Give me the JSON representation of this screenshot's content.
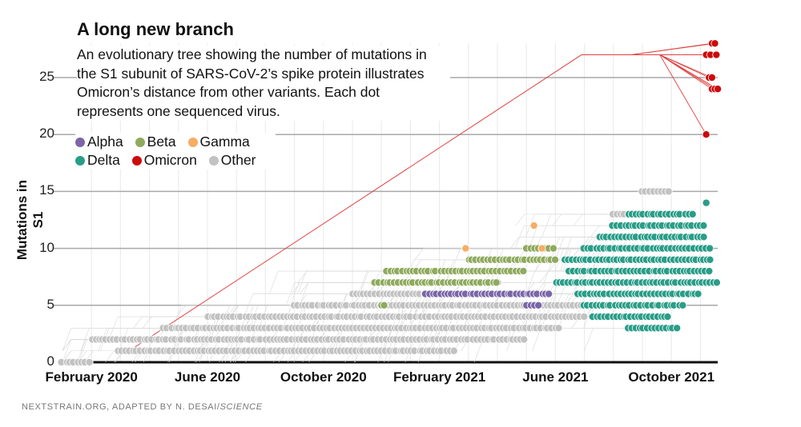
{
  "title": "A long new branch",
  "subtitle": "An evolutionary tree showing the number of mutations in the S1 subunit of SARS-CoV-2’s spike protein illustrates Omicron’s distance from other variants. Each dot represents one sequenced virus.",
  "footer": {
    "source": "NEXTSTRAIN.ORG, ADAPTED BY N. DESAI/",
    "publication": "SCIENCE"
  },
  "chart_data": {
    "type": "scatter",
    "title": "A long new branch",
    "xlabel": "",
    "ylabel": "Mutations in S1",
    "x_unit": "months since January 2020",
    "xlim": [
      0,
      22.6
    ],
    "ylim": [
      0,
      28
    ],
    "yticks": [
      0,
      5,
      10,
      15,
      20,
      25
    ],
    "xticks": [
      {
        "label": "February 2020",
        "value": 1
      },
      {
        "label": "June 2020",
        "value": 5
      },
      {
        "label": "October 2020",
        "value": 9
      },
      {
        "label": "February 2021",
        "value": 13
      },
      {
        "label": "June 2021",
        "value": 17
      },
      {
        "label": "October 2021",
        "value": 21
      }
    ],
    "legend": [
      {
        "name": "Alpha",
        "color": "#7a66a8"
      },
      {
        "name": "Beta",
        "color": "#8faa5e"
      },
      {
        "name": "Gamma",
        "color": "#f7ad63"
      },
      {
        "name": "Delta",
        "color": "#2a9d88"
      },
      {
        "name": "Omicron",
        "color": "#cc0a0a"
      },
      {
        "name": "Other",
        "color": "#c2c2c2"
      }
    ],
    "dot_runs": [
      {
        "variant": "Other",
        "y": 0,
        "from": 0,
        "to": 1
      },
      {
        "variant": "Other",
        "y": 1,
        "from": 1.9,
        "to": 13.5
      },
      {
        "variant": "Other",
        "y": 2,
        "from": 1,
        "to": 16
      },
      {
        "variant": "Other",
        "y": 3,
        "from": 3.5,
        "to": 17.2
      },
      {
        "variant": "Other",
        "y": 4,
        "from": 5,
        "to": 18
      },
      {
        "variant": "Other",
        "y": 5,
        "from": 8,
        "to": 18.5
      },
      {
        "variant": "Other",
        "y": 6,
        "from": 10,
        "to": 16
      },
      {
        "variant": "Other",
        "y": 7,
        "from": 12,
        "to": 15
      },
      {
        "variant": "Other",
        "y": 10,
        "from": 19.5,
        "to": 21.5
      },
      {
        "variant": "Other",
        "y": 13,
        "from": 19,
        "to": 20.5
      },
      {
        "variant": "Other",
        "y": 15,
        "from": 20,
        "to": 21
      },
      {
        "variant": "Alpha",
        "y": 6,
        "from": 12.5,
        "to": 16.8
      },
      {
        "variant": "Alpha",
        "y": 5,
        "from": 16,
        "to": 16.5
      },
      {
        "variant": "Beta",
        "y": 7,
        "from": 10.8,
        "to": 15
      },
      {
        "variant": "Beta",
        "y": 8,
        "from": 11.2,
        "to": 16
      },
      {
        "variant": "Beta",
        "y": 9,
        "from": 14,
        "to": 17
      },
      {
        "variant": "Beta",
        "y": 10,
        "from": 16,
        "to": 17
      },
      {
        "variant": "Beta",
        "y": 5,
        "from": 11,
        "to": 11.2
      },
      {
        "variant": "Gamma",
        "y": 10,
        "from": 13.9,
        "to": 14
      },
      {
        "variant": "Gamma",
        "y": 10,
        "from": 16.5,
        "to": 16.6
      },
      {
        "variant": "Gamma",
        "y": 12,
        "from": 16.3,
        "to": 16.4
      },
      {
        "variant": "Delta",
        "y": 7,
        "from": 17,
        "to": 22.6
      },
      {
        "variant": "Delta",
        "y": 8,
        "from": 17.5,
        "to": 22.4
      },
      {
        "variant": "Delta",
        "y": 9,
        "from": 17.3,
        "to": 22.4
      },
      {
        "variant": "Delta",
        "y": 6,
        "from": 17.8,
        "to": 22
      },
      {
        "variant": "Delta",
        "y": 5,
        "from": 18,
        "to": 21.5
      },
      {
        "variant": "Delta",
        "y": 4,
        "from": 18.3,
        "to": 21
      },
      {
        "variant": "Delta",
        "y": 10,
        "from": 18,
        "to": 22.3
      },
      {
        "variant": "Delta",
        "y": 11,
        "from": 18.5,
        "to": 22.2
      },
      {
        "variant": "Delta",
        "y": 12,
        "from": 19,
        "to": 22.2
      },
      {
        "variant": "Delta",
        "y": 13,
        "from": 19.5,
        "to": 21.8
      },
      {
        "variant": "Delta",
        "y": 14,
        "from": 22.2,
        "to": 22.3
      },
      {
        "variant": "Delta",
        "y": 3,
        "from": 19.5,
        "to": 21.2
      }
    ],
    "omicron_branch": {
      "from": [
        2.3,
        1
      ],
      "trunk": [
        17.9,
        27
      ],
      "node": [
        19.6,
        27
      ]
    },
    "omicron_points": [
      [
        22.4,
        28
      ],
      [
        22.5,
        28
      ],
      [
        22.2,
        27
      ],
      [
        22.35,
        27
      ],
      [
        22.55,
        27
      ],
      [
        22.3,
        25
      ],
      [
        22.4,
        25
      ],
      [
        22.4,
        24
      ],
      [
        22.5,
        24
      ],
      [
        22.6,
        24
      ],
      [
        22.2,
        20
      ]
    ]
  }
}
